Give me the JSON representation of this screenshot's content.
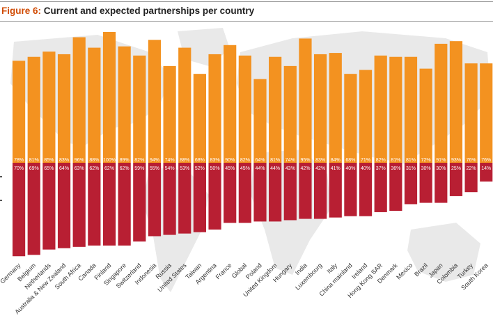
{
  "figure": {
    "label": "Figure 6:",
    "title": "Current and expected partnerships per country"
  },
  "colors": {
    "expected": "#f39220",
    "current": "#b81f33",
    "figure_label": "#d04a02",
    "map": "#e9e9e9"
  },
  "chart_data": {
    "type": "bar",
    "layout": "diverging",
    "categories": [
      "Germany",
      "Belgium",
      "Netherlands",
      "Australia & New Zealand",
      "South Africa",
      "Canada",
      "Finland",
      "Singapore",
      "Switzerland",
      "Indonesia",
      "Russia",
      "United States",
      "Taiwan",
      "Argentina",
      "France",
      "Global",
      "Poland",
      "United Kingdom",
      "Hungary",
      "India",
      "Luxembourg",
      "Italy",
      "China mainland",
      "Ireland",
      "Hong Kong SAR",
      "Denmark",
      "Mexico",
      "Brazil",
      "Japan",
      "Colombia",
      "Turkey",
      "South Korea"
    ],
    "series": [
      {
        "key": "expected",
        "direction": "up",
        "values": [
          78,
          81,
          85,
          83,
          96,
          88,
          100,
          89,
          82,
          94,
          74,
          88,
          68,
          83,
          90,
          82,
          64,
          81,
          74,
          95,
          83,
          84,
          68,
          71,
          82,
          81,
          81,
          72,
          91,
          93,
          76,
          76
        ],
        "labels": [
          "78%",
          "81%",
          "85%",
          "83%",
          "96%",
          "88%",
          "100%",
          "89%",
          "82%",
          "94%",
          "74%",
          "88%",
          "68%",
          "83%",
          "90%",
          "82%",
          "64%",
          "81%",
          "74%",
          "95%",
          "83%",
          "84%",
          "68%",
          "71%",
          "82%",
          "81%",
          "81%",
          "72%",
          "91%",
          "93%",
          "76%",
          "76%"
        ]
      },
      {
        "key": "current",
        "direction": "down",
        "values": [
          70,
          69,
          65,
          64,
          63,
          62,
          62,
          62,
          59,
          55,
          54,
          53,
          52,
          50,
          45,
          45,
          44,
          44,
          43,
          42,
          42,
          41,
          40,
          40,
          37,
          36,
          31,
          30,
          30,
          25,
          22,
          14
        ],
        "labels": [
          "70%",
          "69%",
          "65%",
          "64%",
          "63%",
          "62%",
          "62%",
          "62%",
          "59%",
          "55%",
          "54%",
          "53%",
          "52%",
          "50%",
          "45%",
          "45%",
          "44%",
          "44%",
          "43%",
          "42%",
          "42%",
          "41%",
          "40%",
          "40%",
          "37%",
          "36%",
          "31%",
          "30%",
          "30%",
          "25%",
          "22%",
          "14%"
        ]
      }
    ],
    "ylim": [
      0,
      100
    ],
    "grid": false,
    "legend": "none"
  }
}
